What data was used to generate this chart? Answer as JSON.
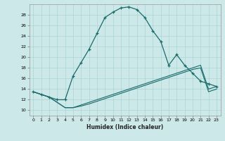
{
  "xlabel": "Humidex (Indice chaleur)",
  "xlim": [
    -0.5,
    23.5
  ],
  "ylim": [
    9,
    30
  ],
  "xticks": [
    0,
    1,
    2,
    3,
    4,
    5,
    6,
    7,
    8,
    9,
    10,
    11,
    12,
    13,
    14,
    15,
    16,
    17,
    18,
    19,
    20,
    21,
    22,
    23
  ],
  "yticks": [
    10,
    12,
    14,
    16,
    18,
    20,
    22,
    24,
    26,
    28
  ],
  "bg_color": "#cce8e8",
  "line_color": "#1a6b6b",
  "grid_color": "#aad4d4",
  "curve1_x": [
    0,
    1,
    2,
    3,
    4,
    5,
    6,
    7,
    8,
    9,
    10,
    11,
    12,
    13,
    14,
    15,
    16,
    17,
    18,
    19,
    20,
    21,
    22,
    23
  ],
  "curve1_y": [
    13.5,
    13.0,
    12.5,
    12.0,
    12.0,
    16.5,
    19.0,
    21.5,
    24.5,
    27.5,
    28.5,
    29.3,
    29.5,
    29.0,
    27.5,
    25.0,
    23.0,
    18.5,
    20.5,
    18.5,
    17.0,
    15.5,
    15.0,
    14.5
  ],
  "curve2_x": [
    0,
    1,
    2,
    3,
    4,
    5,
    6,
    7,
    8,
    9,
    10,
    11,
    12,
    13,
    14,
    15,
    16,
    17,
    18,
    19,
    20,
    21,
    22,
    23
  ],
  "curve2_y": [
    13.5,
    13.0,
    12.5,
    11.5,
    10.5,
    10.5,
    11.0,
    11.5,
    12.0,
    12.5,
    13.0,
    13.5,
    14.0,
    14.5,
    15.0,
    15.5,
    16.0,
    16.5,
    17.0,
    17.5,
    18.0,
    18.5,
    14.0,
    14.5
  ],
  "curve3_x": [
    0,
    1,
    2,
    3,
    4,
    5,
    6,
    7,
    8,
    9,
    10,
    11,
    12,
    13,
    14,
    15,
    16,
    17,
    18,
    19,
    20,
    21,
    22,
    23
  ],
  "curve3_y": [
    13.5,
    13.0,
    12.5,
    11.5,
    10.5,
    10.5,
    10.8,
    11.2,
    11.7,
    12.2,
    12.7,
    13.2,
    13.7,
    14.2,
    14.7,
    15.2,
    15.7,
    16.2,
    16.7,
    17.2,
    17.7,
    18.0,
    13.5,
    14.0
  ]
}
